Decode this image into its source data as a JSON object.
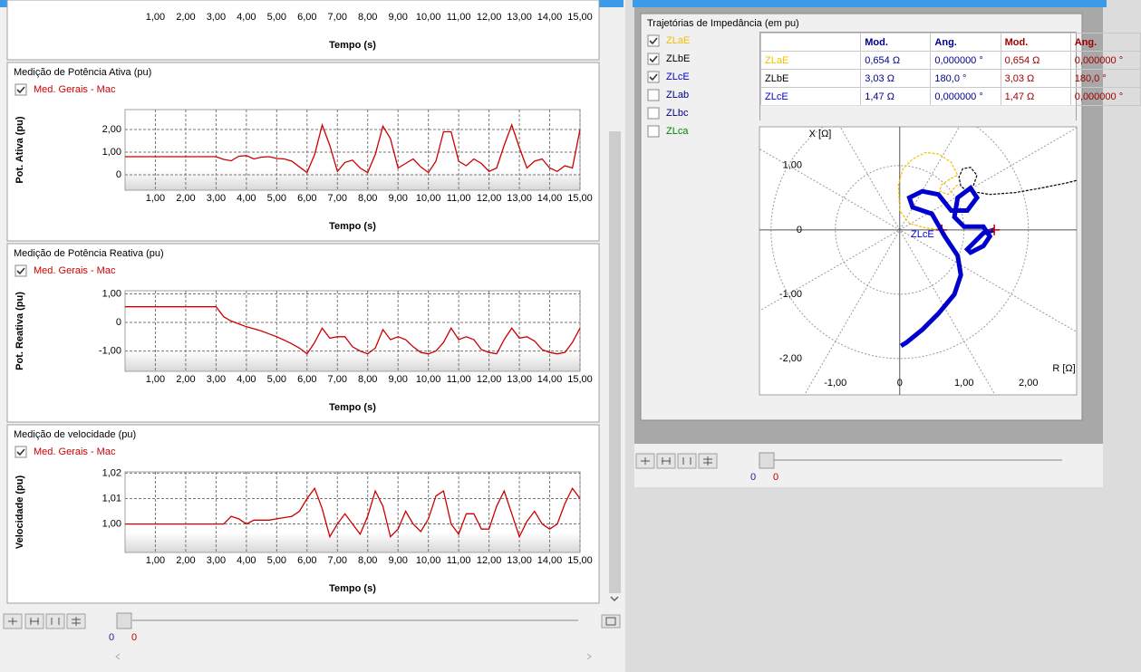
{
  "chart_data": [
    {
      "type": "line",
      "x_label": "Tempo (s)",
      "xlim": [
        0,
        15
      ],
      "xticks": [
        {
          "value": 1,
          "label": "1,00"
        },
        {
          "value": 2,
          "label": "2,00"
        },
        {
          "value": 3,
          "label": "3,00"
        },
        {
          "value": 4,
          "label": "4,00"
        },
        {
          "value": 5,
          "label": "5,00"
        },
        {
          "value": 6,
          "label": "6,00"
        },
        {
          "value": 7,
          "label": "7,00"
        },
        {
          "value": 8,
          "label": "8,00"
        },
        {
          "value": 9,
          "label": "9,00"
        },
        {
          "value": 10,
          "label": "10,00"
        },
        {
          "value": 11,
          "label": "11,00"
        },
        {
          "value": 12,
          "label": "12,00"
        },
        {
          "value": 13,
          "label": "13,00"
        },
        {
          "value": 14,
          "label": "14,00"
        },
        {
          "value": 15,
          "label": "15,00"
        }
      ],
      "series": []
    },
    {
      "type": "line",
      "title": "Medição de Potência Ativa (pu)",
      "x_label": "Tempo (s)",
      "y_label": "Pot. Ativa (pu)",
      "grid": true,
      "xlim": [
        0,
        15
      ],
      "ylim": [
        -0.68,
        2.88
      ],
      "xticks": [
        {
          "value": 1,
          "label": "1,00"
        },
        {
          "value": 2,
          "label": "2,00"
        },
        {
          "value": 3,
          "label": "3,00"
        },
        {
          "value": 4,
          "label": "4,00"
        },
        {
          "value": 5,
          "label": "5,00"
        },
        {
          "value": 6,
          "label": "6,00"
        },
        {
          "value": 7,
          "label": "7,00"
        },
        {
          "value": 8,
          "label": "8,00"
        },
        {
          "value": 9,
          "label": "9,00"
        },
        {
          "value": 10,
          "label": "10,00"
        },
        {
          "value": 11,
          "label": "11,00"
        },
        {
          "value": 12,
          "label": "12,00"
        },
        {
          "value": 13,
          "label": "13,00"
        },
        {
          "value": 14,
          "label": "14,00"
        },
        {
          "value": 15,
          "label": "15,00"
        }
      ],
      "yticks": [
        0,
        {
          "value": 1,
          "label": "1,00"
        },
        {
          "value": 2,
          "label": "2,00"
        }
      ],
      "x": [
        0,
        0.25,
        0.5,
        0.75,
        1,
        1.25,
        1.5,
        1.75,
        2,
        2.25,
        2.5,
        2.75,
        3,
        3.25,
        3.5,
        3.75,
        4,
        4.25,
        4.5,
        4.75,
        5,
        5.25,
        5.5,
        5.75,
        6,
        6.25,
        6.5,
        6.75,
        7,
        7.25,
        7.5,
        7.75,
        8,
        8.25,
        8.5,
        8.75,
        9,
        9.25,
        9.5,
        9.75,
        10,
        10.25,
        10.5,
        10.75,
        11,
        11.25,
        11.5,
        11.75,
        12,
        12.25,
        12.5,
        12.75,
        13,
        13.25,
        13.5,
        13.75,
        14,
        14.25,
        14.5,
        14.75,
        15
      ],
      "series": [
        {
          "name": "Med. Gerais - Mac",
          "color": "#cc0000",
          "values": [
            0.8,
            0.8,
            0.8,
            0.8,
            0.8,
            0.8,
            0.8,
            0.8,
            0.8,
            0.8,
            0.8,
            0.8,
            0.8,
            0.68,
            0.62,
            0.82,
            0.85,
            0.7,
            0.78,
            0.8,
            0.72,
            0.7,
            0.6,
            0.35,
            0.1,
            0.9,
            2.2,
            1.3,
            0.15,
            0.55,
            0.65,
            0.3,
            0.1,
            0.9,
            2.15,
            1.6,
            0.3,
            0.5,
            0.7,
            0.35,
            0.1,
            0.6,
            1.9,
            1.9,
            0.6,
            0.4,
            0.7,
            0.5,
            0.15,
            0.3,
            1.3,
            2.2,
            1.2,
            0.3,
            0.6,
            0.7,
            0.3,
            0.15,
            0.4,
            0.3,
            2.0
          ]
        }
      ]
    },
    {
      "type": "line",
      "title": "Medição de Potência Reativa (pu)",
      "x_label": "Tempo (s)",
      "y_label": "Pot. Reativa (pu)",
      "grid": true,
      "xlim": [
        0,
        15
      ],
      "ylim": [
        -1.71,
        1.11
      ],
      "xticks": [
        {
          "value": 1,
          "label": "1,00"
        },
        {
          "value": 2,
          "label": "2,00"
        },
        {
          "value": 3,
          "label": "3,00"
        },
        {
          "value": 4,
          "label": "4,00"
        },
        {
          "value": 5,
          "label": "5,00"
        },
        {
          "value": 6,
          "label": "6,00"
        },
        {
          "value": 7,
          "label": "7,00"
        },
        {
          "value": 8,
          "label": "8,00"
        },
        {
          "value": 9,
          "label": "9,00"
        },
        {
          "value": 10,
          "label": "10,00"
        },
        {
          "value": 11,
          "label": "11,00"
        },
        {
          "value": 12,
          "label": "12,00"
        },
        {
          "value": 13,
          "label": "13,00"
        },
        {
          "value": 14,
          "label": "14,00"
        },
        {
          "value": 15,
          "label": "15,00"
        }
      ],
      "yticks": [
        {
          "value": -1,
          "label": "-1,00"
        },
        0,
        {
          "value": 1,
          "label": "1,00"
        }
      ],
      "x": [
        0,
        0.25,
        0.5,
        0.75,
        1,
        1.25,
        1.5,
        1.75,
        2,
        2.25,
        2.5,
        2.75,
        3,
        3.25,
        3.5,
        3.75,
        4,
        4.25,
        4.5,
        4.75,
        5,
        5.25,
        5.5,
        5.75,
        6,
        6.25,
        6.5,
        6.75,
        7,
        7.25,
        7.5,
        7.75,
        8,
        8.25,
        8.5,
        8.75,
        9,
        9.25,
        9.5,
        9.75,
        10,
        10.25,
        10.5,
        10.75,
        11,
        11.25,
        11.5,
        11.75,
        12,
        12.25,
        12.5,
        12.75,
        13,
        13.25,
        13.5,
        13.75,
        14,
        14.25,
        14.5,
        14.75,
        15
      ],
      "series": [
        {
          "name": "Med. Gerais - Mac",
          "color": "#cc0000",
          "values": [
            0.55,
            0.55,
            0.55,
            0.55,
            0.55,
            0.55,
            0.55,
            0.55,
            0.55,
            0.55,
            0.55,
            0.55,
            0.55,
            0.2,
            0.05,
            -0.05,
            -0.15,
            -0.22,
            -0.3,
            -0.4,
            -0.5,
            -0.62,
            -0.75,
            -0.9,
            -1.1,
            -0.7,
            -0.2,
            -0.55,
            -0.5,
            -0.5,
            -0.85,
            -1.0,
            -1.1,
            -0.9,
            -0.25,
            -0.6,
            -0.5,
            -0.6,
            -0.85,
            -1.05,
            -1.1,
            -1.0,
            -0.7,
            -0.2,
            -0.6,
            -0.5,
            -0.6,
            -0.95,
            -1.05,
            -1.1,
            -0.6,
            -0.2,
            -0.55,
            -0.5,
            -0.65,
            -0.95,
            -1.05,
            -1.1,
            -1.05,
            -0.7,
            -0.2
          ]
        }
      ]
    },
    {
      "type": "line",
      "title": "Medição de velocidade (pu)",
      "x_label": "Tempo (s)",
      "y_label": "Velocidade (pu)",
      "grid": true,
      "xlim": [
        0,
        15
      ],
      "ylim": [
        0.9888,
        1.0205
      ],
      "xticks": [
        {
          "value": 1,
          "label": "1,00"
        },
        {
          "value": 2,
          "label": "2,00"
        },
        {
          "value": 3,
          "label": "3,00"
        },
        {
          "value": 4,
          "label": "4,00"
        },
        {
          "value": 5,
          "label": "5,00"
        },
        {
          "value": 6,
          "label": "6,00"
        },
        {
          "value": 7,
          "label": "7,00"
        },
        {
          "value": 8,
          "label": "8,00"
        },
        {
          "value": 9,
          "label": "9,00"
        },
        {
          "value": 10,
          "label": "10,00"
        },
        {
          "value": 11,
          "label": "11,00"
        },
        {
          "value": 12,
          "label": "12,00"
        },
        {
          "value": 13,
          "label": "13,00"
        },
        {
          "value": 14,
          "label": "14,00"
        },
        {
          "value": 15,
          "label": "15,00"
        }
      ],
      "yticks": [
        {
          "value": 1.0,
          "label": "1,00"
        },
        {
          "value": 1.01,
          "label": "1,01"
        },
        {
          "value": 1.02,
          "label": "1,02"
        }
      ],
      "x": [
        0,
        0.25,
        0.5,
        0.75,
        1,
        1.25,
        1.5,
        1.75,
        2,
        2.25,
        2.5,
        2.75,
        3,
        3.25,
        3.5,
        3.75,
        4,
        4.25,
        4.5,
        4.75,
        5,
        5.25,
        5.5,
        5.75,
        6,
        6.25,
        6.5,
        6.75,
        7,
        7.25,
        7.5,
        7.75,
        8,
        8.25,
        8.5,
        8.75,
        9,
        9.25,
        9.5,
        9.75,
        10,
        10.25,
        10.5,
        10.75,
        11,
        11.25,
        11.5,
        11.75,
        12,
        12.25,
        12.5,
        12.75,
        13,
        13.25,
        13.5,
        13.75,
        14,
        14.25,
        14.5,
        14.75,
        15
      ],
      "series": [
        {
          "name": "Med. Gerais - Mac",
          "color": "#cc0000",
          "values": [
            1.0,
            1.0,
            1.0,
            1.0,
            1.0,
            1.0,
            1.0,
            1.0,
            1.0,
            1.0,
            1.0,
            1.0,
            1.0,
            1.0,
            1.003,
            1.002,
            1.0,
            1.0015,
            1.0015,
            1.0015,
            1.002,
            1.0025,
            1.003,
            1.005,
            1.01,
            1.014,
            1.006,
            0.995,
            1.0,
            1.004,
            1.0,
            0.996,
            1.003,
            1.013,
            1.007,
            0.995,
            0.998,
            1.005,
            1.0,
            0.997,
            1.002,
            1.011,
            1.013,
            1.0,
            0.996,
            1.004,
            1.004,
            0.998,
            0.998,
            1.007,
            1.013,
            1.004,
            0.995,
            1.001,
            1.005,
            1.0,
            0.998,
            1.0,
            1.008,
            1.014,
            1.01
          ]
        }
      ]
    },
    {
      "type": "xy",
      "title": "Trajetórias de Impedância (em pu)",
      "x_label": "R [Ω]",
      "y_label": "X [Ω]",
      "grid": true,
      "xlim": [
        -2.18,
        2.75
      ],
      "ylim": [
        -2.56,
        1.6
      ],
      "xticks": [
        {
          "value": -1,
          "label": "-1,00"
        },
        0,
        {
          "value": 1,
          "label": "1,00"
        },
        {
          "value": 2,
          "label": "2,00"
        }
      ],
      "yticks": [
        {
          "value": -2,
          "label": "-2,00"
        },
        {
          "value": -1,
          "label": "-1,00"
        },
        0,
        {
          "value": 1,
          "label": "1,00"
        }
      ],
      "series": [
        {
          "name": "ZLaE",
          "color": "#f0c000",
          "checked": true,
          "marker": [
            0.654,
            0
          ],
          "x": [
            0.9,
            0.75,
            0.62,
            0.65,
            0.8,
            0.9,
            0.8,
            0.6,
            0.4,
            0.2,
            0.05,
            -0.02,
            0.0,
            0.15,
            0.4,
            0.654
          ],
          "values": [
            0.7,
            0.55,
            0.6,
            0.7,
            0.8,
            0.85,
            1.05,
            1.18,
            1.2,
            1.1,
            0.95,
            0.7,
            0.3,
            0.1,
            0.03,
            0
          ]
        },
        {
          "name": "ZLbE",
          "color": "#000000",
          "checked": true,
          "x": [
            1.05,
            0.95,
            0.92,
            0.98,
            1.1,
            1.2,
            1.15,
            1.05,
            1.1,
            1.4,
            1.8,
            2.2,
            2.6,
            2.8
          ],
          "values": [
            0.6,
            0.68,
            0.82,
            0.95,
            0.97,
            0.85,
            0.7,
            0.62,
            0.6,
            0.55,
            0.58,
            0.65,
            0.73,
            0.78
          ]
        },
        {
          "name": "ZLcE",
          "color": "#0000cc",
          "checked": true,
          "marker": [
            1.47,
            0
          ],
          "x": [
            1.47,
            1.3,
            1.15,
            1.05,
            1.1,
            1.3,
            1.4,
            1.3,
            1.0,
            0.85,
            0.9,
            1.1,
            1.2,
            1.05,
            0.8,
            0.6,
            0.35,
            0.15,
            0.2,
            0.5,
            0.7,
            0.9,
            0.95,
            0.85,
            0.6,
            0.35,
            0.1,
            0.02
          ],
          "values": [
            0.0,
            -0.05,
            -0.2,
            -0.3,
            -0.35,
            -0.25,
            -0.1,
            0.05,
            0.05,
            0.2,
            0.5,
            0.65,
            0.5,
            0.3,
            0.3,
            0.55,
            0.6,
            0.5,
            0.35,
            0.25,
            -0.1,
            -0.4,
            -0.7,
            -1.0,
            -1.3,
            -1.55,
            -1.75,
            -1.8
          ]
        },
        {
          "name": "ZLab",
          "color": "#000080",
          "checked": false,
          "x": [],
          "values": []
        },
        {
          "name": "ZLbc",
          "color": "#000080",
          "checked": false,
          "x": [],
          "values": []
        },
        {
          "name": "ZLca",
          "color": "#008000",
          "checked": false,
          "x": [],
          "values": []
        }
      ]
    }
  ],
  "impedance_table": {
    "headers": [
      "Mod.",
      "Ang.",
      "Mod.",
      "Ang."
    ],
    "rows": [
      [
        "ZLaE",
        "0,654 Ω",
        "0,000000 °",
        "0,654 Ω",
        "0,000000 °"
      ],
      [
        "ZLbE",
        "3,03 Ω",
        "180,0 °",
        "3,03 Ω",
        "180,0 °"
      ],
      [
        "ZLcE",
        "1,47 Ω",
        "0,000000 °",
        "1,47 Ω",
        "0,000000 °"
      ]
    ]
  },
  "sliders": [
    [
      0,
      0
    ],
    [
      0,
      0
    ]
  ]
}
